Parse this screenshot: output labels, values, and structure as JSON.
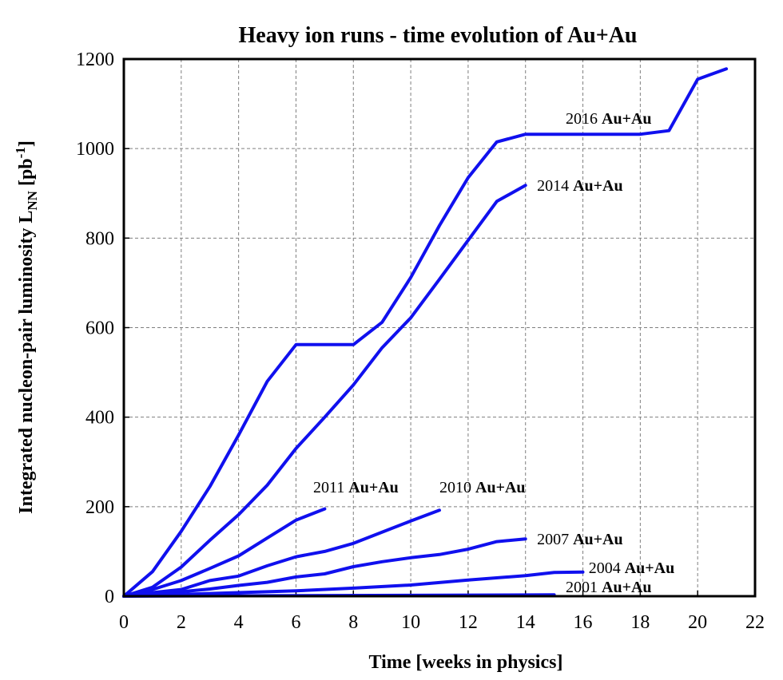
{
  "chart_data": {
    "type": "line",
    "title": "Heavy ion runs - time evolution of Au+Au",
    "xlabel": "Time [weeks in physics]",
    "ylabel": {
      "main": "Integrated nucleon-pair luminosity L",
      "sub": "NN",
      "units_pre": " [pb",
      "sup": "-1",
      "units_post": "]"
    },
    "xlim": [
      0,
      22
    ],
    "ylim": [
      0,
      1200
    ],
    "x_ticks": [
      0,
      2,
      4,
      6,
      8,
      10,
      12,
      14,
      16,
      18,
      20,
      22
    ],
    "y_ticks": [
      0,
      200,
      400,
      600,
      800,
      1000,
      1200
    ],
    "grid": true,
    "line_color": "#1010ee",
    "series": [
      {
        "name": "2016 Au+Au",
        "year": "2016",
        "species": "Au+Au",
        "x": [
          0,
          1,
          2,
          3,
          4,
          5,
          6,
          7,
          8,
          9,
          10,
          11,
          12,
          13,
          14,
          15,
          16,
          17,
          18,
          19,
          20,
          21
        ],
        "values": [
          0,
          55,
          145,
          245,
          360,
          480,
          562,
          562,
          562,
          612,
          712,
          828,
          935,
          1015,
          1032,
          1032,
          1032,
          1032,
          1032,
          1040,
          1155,
          1178
        ]
      },
      {
        "name": "2014 Au+Au",
        "year": "2014",
        "species": "Au+Au",
        "x": [
          0,
          1,
          2,
          3,
          4,
          5,
          6,
          7,
          8,
          9,
          10,
          11,
          12,
          13,
          14
        ],
        "values": [
          0,
          20,
          65,
          125,
          182,
          248,
          330,
          400,
          472,
          555,
          622,
          708,
          795,
          882,
          918
        ]
      },
      {
        "name": "2011 Au+Au",
        "year": "2011",
        "species": "Au+Au",
        "x": [
          0,
          1,
          2,
          3,
          4,
          5,
          6,
          7
        ],
        "values": [
          0,
          15,
          35,
          62,
          90,
          130,
          170,
          195
        ]
      },
      {
        "name": "2010 Au+Au",
        "year": "2010",
        "species": "Au+Au",
        "x": [
          0,
          1,
          2,
          3,
          4,
          5,
          6,
          7,
          8,
          9,
          10,
          11
        ],
        "values": [
          0,
          8,
          15,
          35,
          45,
          68,
          88,
          100,
          118,
          143,
          168,
          192
        ]
      },
      {
        "name": "2007 Au+Au",
        "year": "2007",
        "species": "Au+Au",
        "x": [
          0,
          1,
          2,
          3,
          4,
          5,
          6,
          7,
          8,
          9,
          10,
          11,
          12,
          13,
          14
        ],
        "values": [
          0,
          4,
          10,
          16,
          24,
          31,
          43,
          50,
          66,
          77,
          86,
          93,
          105,
          122,
          128
        ]
      },
      {
        "name": "2004 Au+Au",
        "year": "2004",
        "species": "Au+Au",
        "x": [
          0,
          2,
          4,
          6,
          8,
          10,
          12,
          14,
          15,
          16
        ],
        "values": [
          0,
          4,
          8,
          12,
          18,
          25,
          36,
          46,
          53,
          54
        ]
      },
      {
        "name": "2001 Au+Au",
        "year": "2001",
        "species": "Au+Au",
        "x": [
          0,
          5,
          10,
          15
        ],
        "values": [
          0,
          1,
          2,
          3
        ]
      }
    ]
  }
}
